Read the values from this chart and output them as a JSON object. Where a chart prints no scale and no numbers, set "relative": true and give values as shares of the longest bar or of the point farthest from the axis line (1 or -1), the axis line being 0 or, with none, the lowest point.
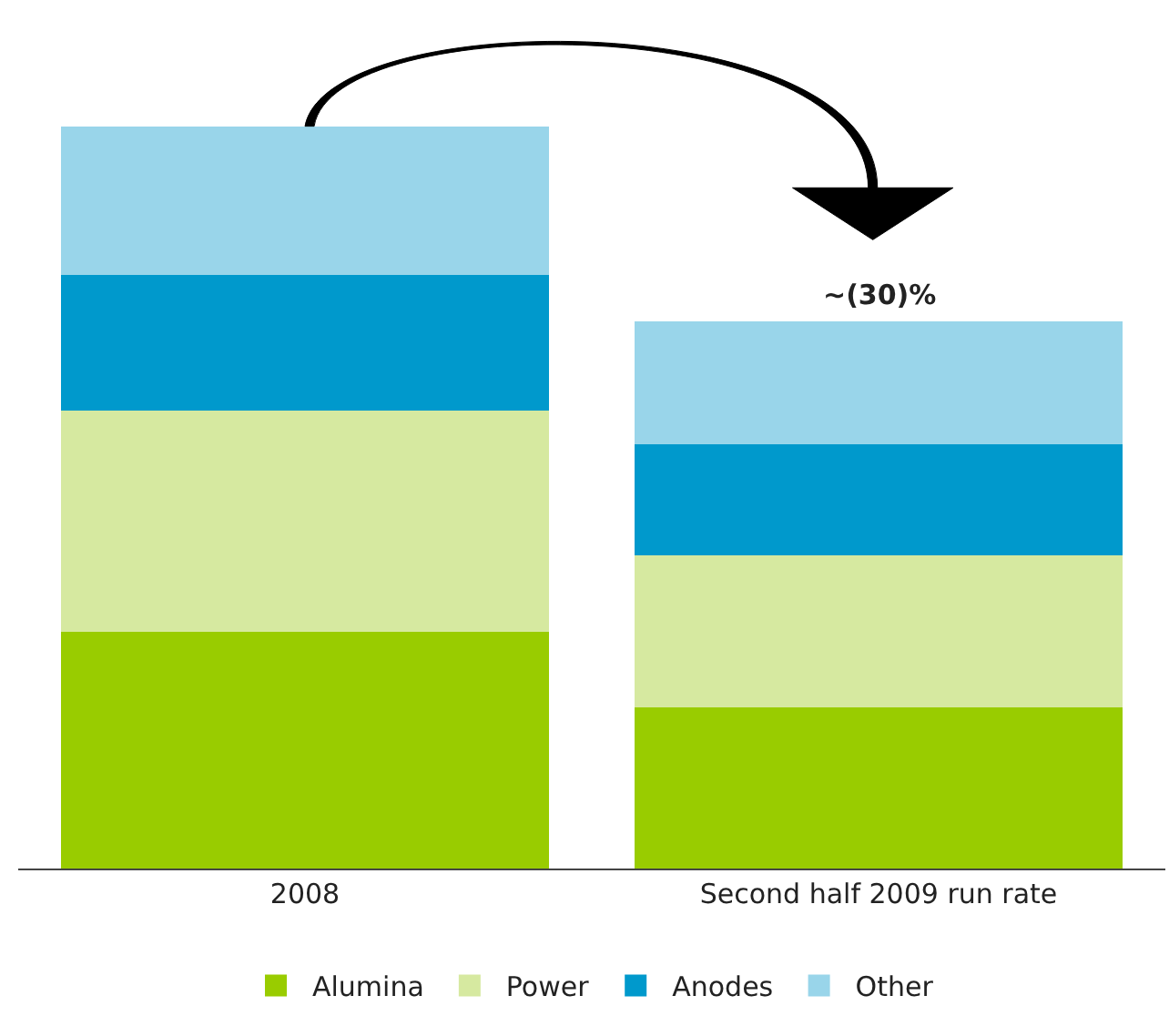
{
  "chart_data": {
    "type": "bar",
    "stacked": true,
    "relative": true,
    "legend": "bottom",
    "categories": [
      "2008",
      "Second half 2009 run rate"
    ],
    "series": [
      {
        "name": "Alumina",
        "color": "#99cc00",
        "values": [
          0.319,
          0.217
        ]
      },
      {
        "name": "Power",
        "color": "#d6e9a0",
        "values": [
          0.298,
          0.205
        ]
      },
      {
        "name": "Anodes",
        "color": "#0099cc",
        "values": [
          0.183,
          0.149
        ]
      },
      {
        "name": "Other",
        "color": "#99d5ea",
        "values": [
          0.2,
          0.166
        ]
      }
    ],
    "annotations": [
      {
        "text": "~(30)%",
        "x": "Second half 2009 run rate",
        "y": 0.737
      }
    ]
  }
}
